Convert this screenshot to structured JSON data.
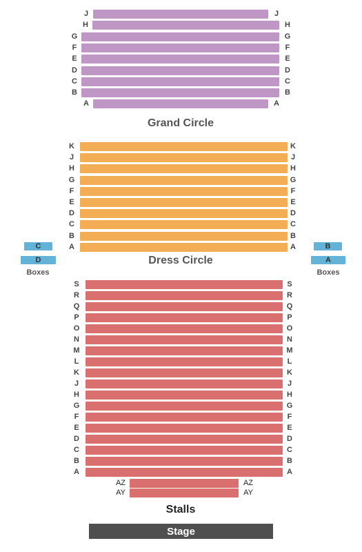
{
  "colors": {
    "grand_circle": "#bf97c4",
    "dress_circle": "#f3ad55",
    "stalls": "#d96f6e",
    "boxes": "#63b3d9",
    "stage": "#4f4f4f"
  },
  "grand_circle": {
    "title": "Grand Circle",
    "rows": [
      "J",
      "H",
      "G",
      "F",
      "E",
      "D",
      "C",
      "B",
      "A"
    ]
  },
  "dress_circle": {
    "title": "Dress Circle",
    "rows": [
      "K",
      "J",
      "H",
      "G",
      "F",
      "E",
      "D",
      "C",
      "B",
      "A"
    ]
  },
  "boxes_left": {
    "title": "Boxes",
    "labels": [
      "C",
      "D"
    ]
  },
  "boxes_right": {
    "title": "Boxes",
    "labels": [
      "B",
      "A"
    ]
  },
  "stalls": {
    "title": "Stalls",
    "rows": [
      "S",
      "R",
      "Q",
      "P",
      "O",
      "N",
      "M",
      "L",
      "K",
      "J",
      "H",
      "G",
      "F",
      "E",
      "D",
      "C",
      "B",
      "A"
    ],
    "front_rows": [
      "AZ",
      "AY"
    ]
  },
  "stage": {
    "label": "Stage"
  }
}
